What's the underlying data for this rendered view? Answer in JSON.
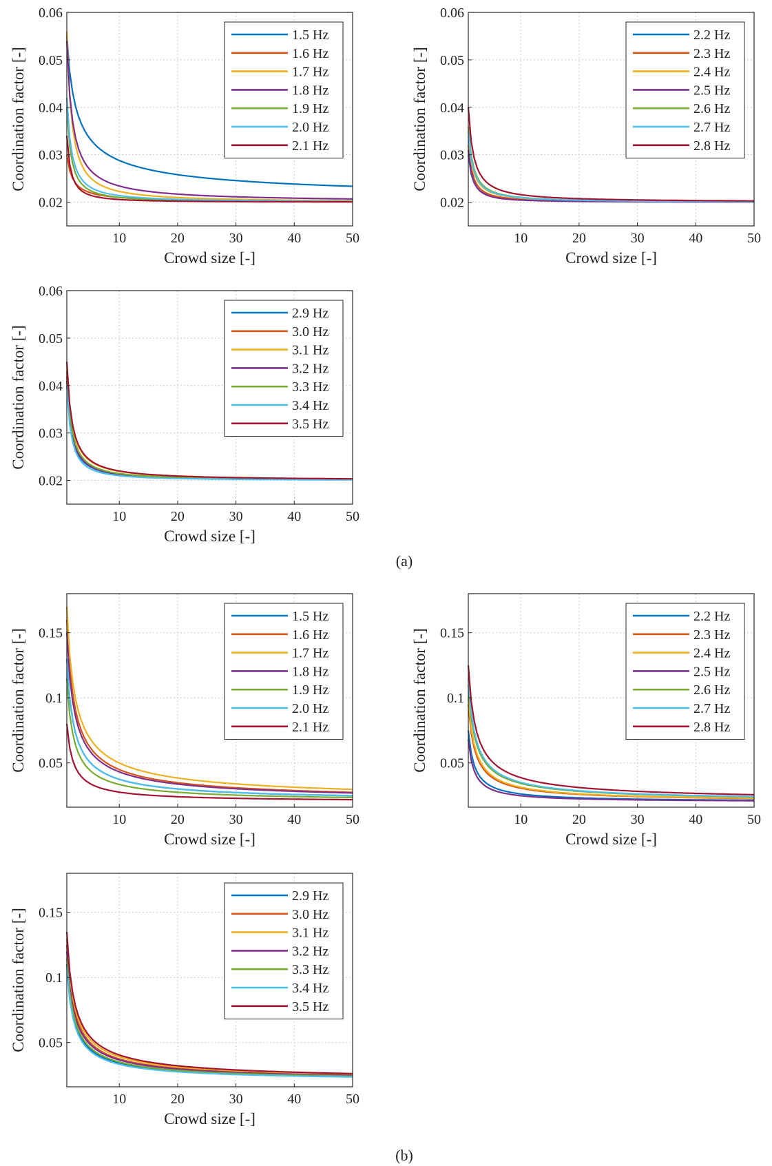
{
  "panel_labels": [
    "(a)",
    "(b)"
  ],
  "chart_data": [
    {
      "id": "a1",
      "type": "line",
      "title": "",
      "xlabel": "Crowd size [-]",
      "ylabel": "Coordination factor [-]",
      "xlim": [
        1,
        50
      ],
      "ylim": [
        0.015,
        0.06
      ],
      "xticks": [
        10,
        20,
        30,
        40,
        50
      ],
      "yticks": [
        0.02,
        0.03,
        0.04,
        0.05,
        0.06
      ],
      "ytick_labels": [
        "0.02",
        "0.03",
        "0.04",
        "0.05",
        "0.06"
      ],
      "grid": true,
      "legend_position": "top-right",
      "series": [
        {
          "name": "1.5 Hz",
          "color": "#0072BD",
          "start": 0.055,
          "asymptote": 0.02,
          "shape": 0.6
        },
        {
          "name": "1.6 Hz",
          "color": "#D95319",
          "start": 0.03,
          "asymptote": 0.02,
          "shape": 1.0
        },
        {
          "name": "1.7 Hz",
          "color": "#EDB120",
          "start": 0.056,
          "asymptote": 0.02,
          "shape": 1.2
        },
        {
          "name": "1.8 Hz",
          "color": "#7E2F8E",
          "start": 0.054,
          "asymptote": 0.02,
          "shape": 1.0
        },
        {
          "name": "1.9 Hz",
          "color": "#77AC30",
          "start": 0.04,
          "asymptote": 0.02,
          "shape": 1.3
        },
        {
          "name": "2.0 Hz",
          "color": "#4DBEEE",
          "start": 0.042,
          "asymptote": 0.02,
          "shape": 1.2
        },
        {
          "name": "2.1 Hz",
          "color": "#A2142F",
          "start": 0.034,
          "asymptote": 0.02,
          "shape": 1.4
        }
      ]
    },
    {
      "id": "a2",
      "type": "line",
      "title": "",
      "xlabel": "Crowd size [-]",
      "ylabel": "Coordination factor [-]",
      "xlim": [
        1,
        50
      ],
      "ylim": [
        0.015,
        0.06
      ],
      "xticks": [
        10,
        20,
        30,
        40,
        50
      ],
      "yticks": [
        0.02,
        0.03,
        0.04,
        0.05,
        0.06
      ],
      "ytick_labels": [
        "0.02",
        "0.03",
        "0.04",
        "0.05",
        "0.06"
      ],
      "grid": true,
      "legend_position": "top-right",
      "series": [
        {
          "name": "2.2 Hz",
          "color": "#0072BD",
          "start": 0.03,
          "asymptote": 0.02,
          "shape": 1.3
        },
        {
          "name": "2.3 Hz",
          "color": "#D95319",
          "start": 0.032,
          "asymptote": 0.02,
          "shape": 1.3
        },
        {
          "name": "2.4 Hz",
          "color": "#EDB120",
          "start": 0.034,
          "asymptote": 0.02,
          "shape": 1.2
        },
        {
          "name": "2.5 Hz",
          "color": "#7E2F8E",
          "start": 0.031,
          "asymptote": 0.02,
          "shape": 1.4
        },
        {
          "name": "2.6 Hz",
          "color": "#77AC30",
          "start": 0.036,
          "asymptote": 0.02,
          "shape": 1.2
        },
        {
          "name": "2.7 Hz",
          "color": "#4DBEEE",
          "start": 0.035,
          "asymptote": 0.02,
          "shape": 1.2
        },
        {
          "name": "2.8 Hz",
          "color": "#A2142F",
          "start": 0.04,
          "asymptote": 0.02,
          "shape": 1.1
        }
      ]
    },
    {
      "id": "a3",
      "type": "line",
      "title": "",
      "xlabel": "Crowd size [-]",
      "ylabel": "Coordination factor [-]",
      "xlim": [
        1,
        50
      ],
      "ylim": [
        0.015,
        0.06
      ],
      "xticks": [
        10,
        20,
        30,
        40,
        50
      ],
      "yticks": [
        0.02,
        0.03,
        0.04,
        0.05,
        0.06
      ],
      "ytick_labels": [
        "0.02",
        "0.03",
        "0.04",
        "0.05",
        "0.06"
      ],
      "grid": true,
      "legend_position": "top-right",
      "series": [
        {
          "name": "2.9 Hz",
          "color": "#0072BD",
          "start": 0.04,
          "asymptote": 0.02,
          "shape": 1.2
        },
        {
          "name": "3.0 Hz",
          "color": "#D95319",
          "start": 0.042,
          "asymptote": 0.02,
          "shape": 1.2
        },
        {
          "name": "3.1 Hz",
          "color": "#EDB120",
          "start": 0.044,
          "asymptote": 0.02,
          "shape": 1.1
        },
        {
          "name": "3.2 Hz",
          "color": "#7E2F8E",
          "start": 0.041,
          "asymptote": 0.02,
          "shape": 1.2
        },
        {
          "name": "3.3 Hz",
          "color": "#77AC30",
          "start": 0.043,
          "asymptote": 0.02,
          "shape": 1.2
        },
        {
          "name": "3.4 Hz",
          "color": "#4DBEEE",
          "start": 0.04,
          "asymptote": 0.02,
          "shape": 1.3
        },
        {
          "name": "3.5 Hz",
          "color": "#A2142F",
          "start": 0.045,
          "asymptote": 0.02,
          "shape": 1.1
        }
      ]
    },
    {
      "id": "b1",
      "type": "line",
      "title": "",
      "xlabel": "Crowd size [-]",
      "ylabel": "Coordination factor [-]",
      "xlim": [
        1,
        50
      ],
      "ylim": [
        0.016,
        0.18
      ],
      "xticks": [
        10,
        20,
        30,
        40,
        50
      ],
      "yticks": [
        0.05,
        0.1,
        0.15
      ],
      "ytick_labels": [
        "0.05",
        "0.1",
        "0.15"
      ],
      "grid": true,
      "legend_position": "top-right",
      "series": [
        {
          "name": "1.5 Hz",
          "color": "#0072BD",
          "start": 0.13,
          "asymptote": 0.02,
          "shape": 0.8
        },
        {
          "name": "1.6 Hz",
          "color": "#D95319",
          "start": 0.16,
          "asymptote": 0.02,
          "shape": 0.75
        },
        {
          "name": "1.7 Hz",
          "color": "#EDB120",
          "start": 0.17,
          "asymptote": 0.02,
          "shape": 0.7
        },
        {
          "name": "1.8 Hz",
          "color": "#7E2F8E",
          "start": 0.15,
          "asymptote": 0.02,
          "shape": 0.75
        },
        {
          "name": "1.9 Hz",
          "color": "#77AC30",
          "start": 0.115,
          "asymptote": 0.02,
          "shape": 0.85
        },
        {
          "name": "2.0 Hz",
          "color": "#4DBEEE",
          "start": 0.13,
          "asymptote": 0.02,
          "shape": 0.8
        },
        {
          "name": "2.1 Hz",
          "color": "#A2142F",
          "start": 0.08,
          "asymptote": 0.02,
          "shape": 0.9
        }
      ]
    },
    {
      "id": "b2",
      "type": "line",
      "title": "",
      "xlabel": "Crowd size [-]",
      "ylabel": "Coordination factor [-]",
      "xlim": [
        1,
        50
      ],
      "ylim": [
        0.016,
        0.18
      ],
      "xticks": [
        10,
        20,
        30,
        40,
        50
      ],
      "yticks": [
        0.05,
        0.1,
        0.15
      ],
      "ytick_labels": [
        "0.05",
        "0.1",
        "0.15"
      ],
      "grid": true,
      "legend_position": "top-right",
      "series": [
        {
          "name": "2.2 Hz",
          "color": "#0072BD",
          "start": 0.075,
          "asymptote": 0.02,
          "shape": 0.95
        },
        {
          "name": "2.3 Hz",
          "color": "#D95319",
          "start": 0.095,
          "asymptote": 0.02,
          "shape": 0.85
        },
        {
          "name": "2.4 Hz",
          "color": "#EDB120",
          "start": 0.1,
          "asymptote": 0.02,
          "shape": 0.85
        },
        {
          "name": "2.5 Hz",
          "color": "#7E2F8E",
          "start": 0.068,
          "asymptote": 0.02,
          "shape": 1.0
        },
        {
          "name": "2.6 Hz",
          "color": "#77AC30",
          "start": 0.11,
          "asymptote": 0.02,
          "shape": 0.8
        },
        {
          "name": "2.7 Hz",
          "color": "#4DBEEE",
          "start": 0.115,
          "asymptote": 0.02,
          "shape": 0.8
        },
        {
          "name": "2.8 Hz",
          "color": "#A2142F",
          "start": 0.125,
          "asymptote": 0.02,
          "shape": 0.75
        }
      ]
    },
    {
      "id": "b3",
      "type": "line",
      "title": "",
      "xlabel": "Crowd size [-]",
      "ylabel": "Coordination factor [-]",
      "xlim": [
        1,
        50
      ],
      "ylim": [
        0.016,
        0.18
      ],
      "xticks": [
        10,
        20,
        30,
        40,
        50
      ],
      "yticks": [
        0.05,
        0.1,
        0.15
      ],
      "ytick_labels": [
        "0.05",
        "0.1",
        "0.15"
      ],
      "grid": true,
      "legend_position": "top-right",
      "series": [
        {
          "name": "2.9 Hz",
          "color": "#0072BD",
          "start": 0.11,
          "asymptote": 0.02,
          "shape": 0.8
        },
        {
          "name": "3.0 Hz",
          "color": "#D95319",
          "start": 0.125,
          "asymptote": 0.02,
          "shape": 0.78
        },
        {
          "name": "3.1 Hz",
          "color": "#EDB120",
          "start": 0.13,
          "asymptote": 0.02,
          "shape": 0.76
        },
        {
          "name": "3.2 Hz",
          "color": "#7E2F8E",
          "start": 0.12,
          "asymptote": 0.02,
          "shape": 0.78
        },
        {
          "name": "3.3 Hz",
          "color": "#77AC30",
          "start": 0.115,
          "asymptote": 0.02,
          "shape": 0.8
        },
        {
          "name": "3.4 Hz",
          "color": "#4DBEEE",
          "start": 0.108,
          "asymptote": 0.02,
          "shape": 0.82
        },
        {
          "name": "3.5 Hz",
          "color": "#A2142F",
          "start": 0.135,
          "asymptote": 0.02,
          "shape": 0.75
        }
      ]
    }
  ]
}
